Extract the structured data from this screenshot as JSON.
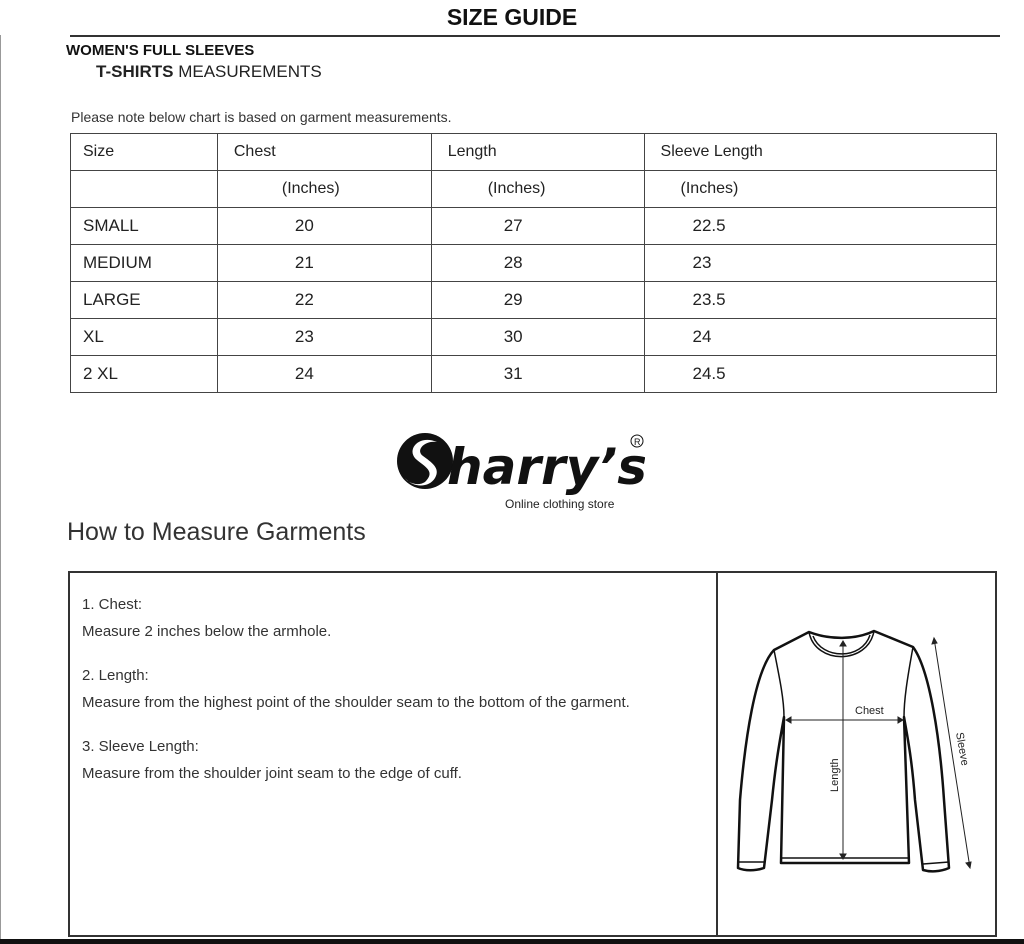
{
  "header": {
    "title": "SIZE GUIDE",
    "subtitle_line1": "WOMEN'S FULL SLEEVES",
    "subtitle_line2_bold": "T-SHIRTS",
    "subtitle_line2_rest": "MEASUREMENTS"
  },
  "note": "Please note below chart is based on garment measurements.",
  "table": {
    "headers": [
      "Size",
      "Chest",
      "Length",
      "Sleeve Length"
    ],
    "units": [
      "",
      "(Inches)",
      "(Inches)",
      "(Inches)"
    ],
    "rows": [
      [
        "SMALL",
        "20",
        "27",
        "22.5"
      ],
      [
        "MEDIUM",
        "21",
        "28",
        "23"
      ],
      [
        "LARGE",
        "22",
        "29",
        "23.5"
      ],
      [
        "XL",
        "23",
        "30",
        "24"
      ],
      [
        "2 XL",
        "24",
        "31",
        "24.5"
      ]
    ]
  },
  "logo": {
    "name": "Sharry's",
    "registered": "®",
    "tagline": "Online clothing store"
  },
  "how_to": {
    "title": "How to Measure Garments",
    "steps": [
      {
        "heading": "1. Chest:",
        "text": "Measure 2 inches below the armhole."
      },
      {
        "heading": "2. Length:",
        "text": "Measure from the highest point of the shoulder seam to the bottom of the garment."
      },
      {
        "heading": "3. Sleeve Length:",
        "text": "Measure from the shoulder joint seam to the edge of cuff."
      }
    ]
  },
  "diagram": {
    "chest": "Chest",
    "length": "Length",
    "sleeve": "Sleeve"
  }
}
